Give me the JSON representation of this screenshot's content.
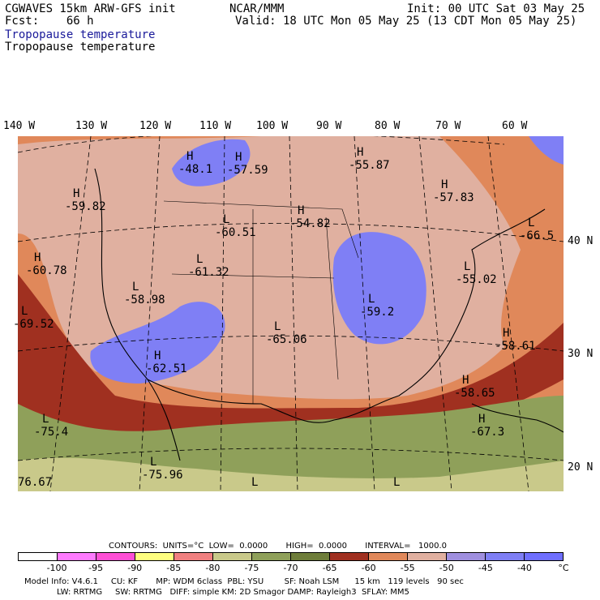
{
  "header": {
    "model": "CGWAVES 15km ARW-GFS init",
    "fcst": "Fcst:    66 h",
    "org": "NCAR/MMM",
    "init": "Init: 00 UTC Sat 03 May 25",
    "valid": "Valid: 18 UTC Mon 05 May 25 (13 CDT Mon 05 May 25)",
    "field_colored": "Tropopause temperature",
    "field_contour": "Tropopause temperature"
  },
  "longitude_labels": [
    "140 W",
    "130 W",
    "120 W",
    "110 W",
    "100 W",
    "90 W",
    "80 W",
    "70 W",
    "60 W"
  ],
  "latitude_labels": [
    "40 N",
    "30 N",
    "20 N"
  ],
  "map_labels": [
    {
      "type": "H",
      "value": "-48.1"
    },
    {
      "type": "H",
      "value": "-57.59"
    },
    {
      "type": "H",
      "value": "-55.87"
    },
    {
      "type": "H",
      "value": "-59.82"
    },
    {
      "type": "H",
      "value": "-57.83"
    },
    {
      "type": "H",
      "value": "-54.82"
    },
    {
      "type": "L",
      "value": "-60.51"
    },
    {
      "type": "L",
      "value": "-66.5"
    },
    {
      "type": "H",
      "value": "-60.78"
    },
    {
      "type": "L",
      "value": "-61.32"
    },
    {
      "type": "L",
      "value": "-55.02"
    },
    {
      "type": "L",
      "value": "-58.98"
    },
    {
      "type": "L",
      "value": "-59.2"
    },
    {
      "type": "L",
      "value": "-69.52"
    },
    {
      "type": "L",
      "value": "-65.06"
    },
    {
      "type": "H",
      "value": "-58.61"
    },
    {
      "type": "H",
      "value": "-62.51"
    },
    {
      "type": "H",
      "value": "-58.65"
    },
    {
      "type": "L",
      "value": "-75.4"
    },
    {
      "type": "H",
      "value": "-67.3"
    },
    {
      "type": "L",
      "value": "-75.96"
    },
    {
      "type": "L",
      "value": ""
    },
    {
      "type": "L",
      "value": ""
    },
    {
      "type": "",
      "value": "76.67"
    }
  ],
  "contours": {
    "text": "CONTOURS:  UNITS=°C  LOW=  0.0000       HIGH=  0.0000       INTERVAL=   1000.0"
  },
  "colorbar": {
    "colors": [
      "#ffffff",
      "#ff7bff",
      "#ff4fd6",
      "#ffff80",
      "#f08080",
      "#c9c98a",
      "#8fa05a",
      "#6e7d3a",
      "#a03020",
      "#e0885a",
      "#e0b0a0",
      "#9f8fdf",
      "#7f7ff5",
      "#6f6fff"
    ],
    "labels": [
      "-100",
      "-95",
      "-90",
      "-85",
      "-80",
      "-75",
      "-70",
      "-65",
      "-60",
      "-55",
      "-50",
      "-45",
      "-40",
      "°C"
    ]
  },
  "footer": {
    "line1": "Model Info: V4.6.1     CU: KF       MP: WDM 6class  PBL: YSU        SF: Noah LSM      15 km   119 levels   90 sec",
    "line2": "LW: RRTMG     SW: RRTMG   DIFF: simple KM: 2D Smagor DAMP: Rayleigh3  SFLAY: MM5"
  }
}
